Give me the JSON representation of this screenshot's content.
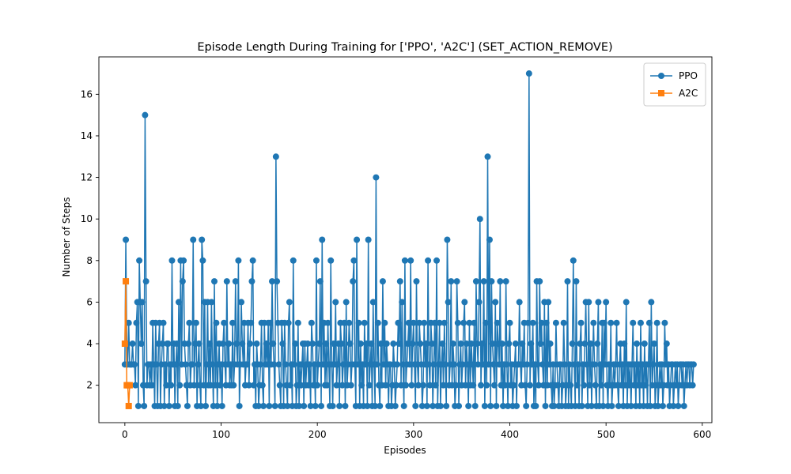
{
  "chart_data": {
    "type": "line",
    "title": "Episode Length During Training for ['PPO', 'A2C'] (SET_ACTION_REMOVE)",
    "xlabel": "Episodes",
    "ylabel": "Number of Steps",
    "xlim": [
      -27,
      610
    ],
    "ylim": [
      0.2,
      17.8
    ],
    "xticks": [
      0,
      100,
      200,
      300,
      400,
      500,
      600
    ],
    "yticks": [
      2,
      4,
      6,
      8,
      10,
      12,
      14,
      16
    ],
    "grid": false,
    "legend_position": "top-right",
    "series": [
      {
        "name": "PPO",
        "color": "#1f77b4",
        "marker": "circle",
        "x_start": 0,
        "x_step": 1,
        "values": [
          3,
          9,
          4,
          3,
          5,
          3,
          3,
          3,
          4,
          3,
          3,
          2,
          5,
          6,
          1,
          8,
          6,
          4,
          6,
          2,
          1,
          15,
          7,
          2,
          3,
          3,
          2,
          3,
          2,
          5,
          3,
          1,
          5,
          3,
          1,
          4,
          5,
          1,
          3,
          4,
          5,
          1,
          3,
          2,
          4,
          4,
          1,
          3,
          2,
          8,
          3,
          4,
          1,
          3,
          4,
          1,
          6,
          2,
          8,
          3,
          7,
          8,
          4,
          3,
          2,
          1,
          4,
          5,
          2,
          3,
          3,
          9,
          2,
          4,
          5,
          1,
          3,
          4,
          2,
          1,
          9,
          8,
          2,
          6,
          1,
          3,
          6,
          2,
          4,
          2,
          6,
          3,
          1,
          7,
          2,
          5,
          1,
          3,
          4,
          2,
          3,
          1,
          4,
          5,
          3,
          2,
          7,
          3,
          4,
          2,
          3,
          2,
          5,
          2,
          3,
          7,
          4,
          3,
          8,
          1,
          3,
          6,
          4,
          3,
          5,
          2,
          3,
          3,
          5,
          2,
          4,
          5,
          7,
          8,
          2,
          3,
          1,
          4,
          3,
          1,
          2,
          3,
          5,
          2,
          1,
          5,
          3,
          4,
          3,
          5,
          1,
          5,
          3,
          7,
          4,
          3,
          1,
          13,
          7,
          5,
          3,
          2,
          1,
          5,
          4,
          1,
          5,
          3,
          2,
          1,
          5,
          6,
          2,
          3,
          1,
          8,
          3,
          4,
          1,
          2,
          5,
          1,
          3,
          2,
          3,
          4,
          1,
          4,
          2,
          3,
          4,
          2,
          3,
          1,
          5,
          4,
          2,
          3,
          1,
          8,
          2,
          3,
          4,
          7,
          1,
          9,
          3,
          5,
          2,
          4,
          2,
          5,
          3,
          1,
          8,
          3,
          1,
          4,
          3,
          6,
          2,
          3,
          4,
          1,
          5,
          4,
          2,
          3,
          5,
          1,
          6,
          2,
          3,
          5,
          4,
          2,
          3,
          7,
          8,
          3,
          1,
          9,
          3,
          5,
          1,
          4,
          2,
          3,
          1,
          5,
          3,
          4,
          1,
          9,
          2,
          3,
          4,
          1,
          6,
          3,
          1,
          12,
          3,
          5,
          2,
          1,
          4,
          2,
          7,
          3,
          5,
          2,
          4,
          3,
          1,
          3,
          3,
          1,
          2,
          4,
          3,
          1,
          2,
          3,
          5,
          4,
          7,
          2,
          6,
          3,
          1,
          8,
          2,
          3,
          4,
          5,
          3,
          8,
          2,
          4,
          5,
          3,
          1,
          7,
          3,
          2,
          5,
          4,
          3,
          1,
          2,
          5,
          3,
          4,
          1,
          8,
          3,
          2,
          5,
          4,
          1,
          3,
          5,
          2,
          8,
          1,
          3,
          5,
          1,
          3,
          4,
          2,
          5,
          3,
          1,
          9,
          6,
          2,
          3,
          7,
          2,
          4,
          3,
          1,
          2,
          7,
          5,
          1,
          3,
          4,
          2,
          3,
          5,
          6,
          2,
          4,
          3,
          1,
          5,
          2,
          4,
          3,
          2,
          5,
          1,
          7,
          4,
          3,
          6,
          10,
          2,
          4,
          3,
          7,
          1,
          5,
          2,
          13,
          3,
          9,
          1,
          7,
          4,
          3,
          2,
          6,
          1,
          5,
          4,
          3,
          7,
          2,
          4,
          1,
          3,
          2,
          7,
          3,
          1,
          4,
          5,
          2,
          3,
          1,
          2,
          3,
          4,
          1,
          3,
          3,
          6,
          3,
          2,
          4,
          3,
          5,
          2,
          1,
          3,
          5,
          17,
          2,
          4,
          3,
          5,
          1,
          3,
          1,
          7,
          3,
          2,
          7,
          4,
          5,
          3,
          2,
          6,
          1,
          5,
          2,
          6,
          3,
          4,
          2,
          1,
          3,
          1,
          2,
          5,
          3,
          2,
          1,
          3,
          3,
          1,
          2,
          5,
          3,
          1,
          2,
          7,
          1,
          3,
          2,
          1,
          4,
          8,
          3,
          1,
          7,
          2,
          3,
          1,
          4,
          5,
          1,
          3,
          2,
          4,
          6,
          3,
          1,
          6,
          2,
          4,
          1,
          3,
          5,
          3,
          2,
          1,
          4,
          6,
          1,
          3,
          2,
          5,
          1,
          5,
          3,
          6,
          2,
          1,
          3,
          2,
          5,
          1,
          2,
          3,
          2,
          3,
          5,
          2,
          1,
          3,
          4,
          2,
          3,
          1,
          4,
          2,
          6,
          1,
          3,
          2,
          3,
          1,
          3,
          5,
          2,
          3,
          1,
          4,
          2,
          3,
          1,
          5,
          2,
          3,
          1,
          4,
          2,
          3,
          1,
          3,
          5,
          1,
          6,
          2,
          3,
          4,
          1,
          2,
          5,
          1,
          2,
          3,
          2,
          3,
          1,
          2,
          5,
          3,
          4,
          2,
          3,
          1,
          2,
          3,
          3,
          1,
          2,
          3,
          2,
          3,
          1,
          2,
          3,
          3,
          2,
          3,
          1,
          2,
          3,
          2,
          3,
          3,
          2,
          3,
          3,
          2,
          3
        ]
      },
      {
        "name": "A2C",
        "color": "#ff7f0e",
        "marker": "square",
        "x": [
          0,
          1,
          2,
          3,
          4,
          5
        ],
        "values": [
          4,
          7,
          2,
          2,
          1,
          2
        ]
      }
    ]
  }
}
